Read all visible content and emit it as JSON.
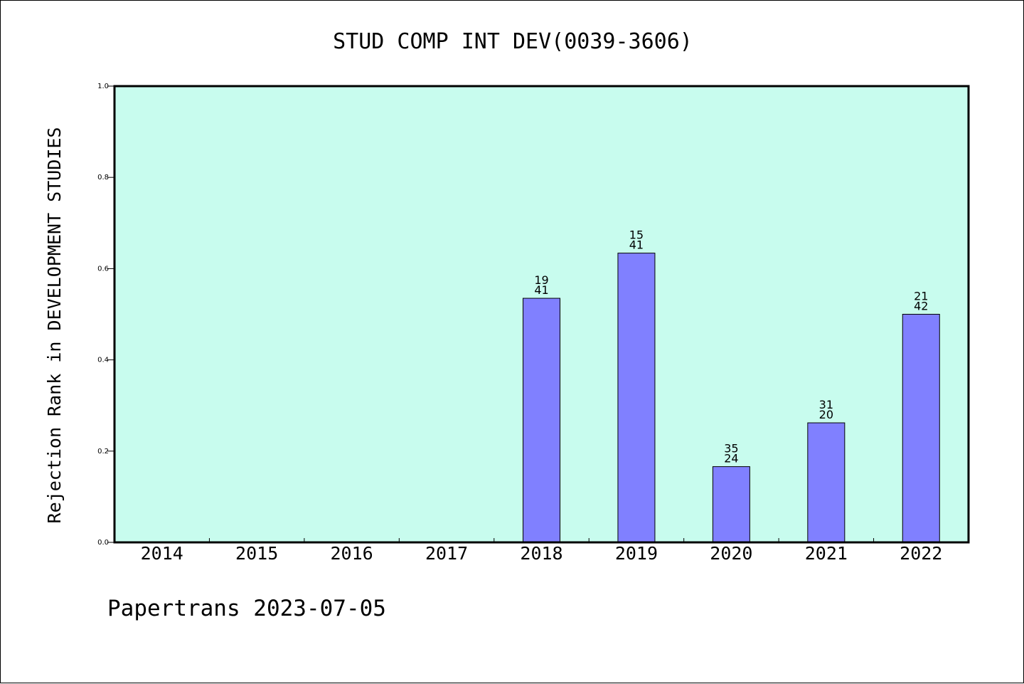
{
  "chart_data": {
    "type": "bar",
    "title": "STUD COMP INT DEV(0039-3606)",
    "ylabel": "Rejection Rank in DEVELOPMENT STUDIES",
    "xlabel": "",
    "categories": [
      "2014",
      "2015",
      "2016",
      "2017",
      "2018",
      "2019",
      "2020",
      "2021",
      "2022"
    ],
    "values": [
      null,
      null,
      null,
      null,
      0.535,
      0.634,
      0.166,
      0.262,
      0.5
    ],
    "bar_labels": [
      null,
      null,
      null,
      null,
      {
        "top": "19",
        "bottom": "41"
      },
      {
        "top": "15",
        "bottom": "41"
      },
      {
        "top": "35",
        "bottom": "24"
      },
      {
        "top": "31",
        "bottom": "20"
      },
      {
        "top": "21",
        "bottom": "42"
      }
    ],
    "ylim": [
      0,
      1.0
    ],
    "yticks": [
      "0.0",
      "0.2",
      "0.4",
      "0.6",
      "0.8",
      "1.0"
    ],
    "ytick_values": [
      0,
      0.2,
      0.4,
      0.6,
      0.8,
      1.0
    ],
    "grid": false,
    "colors": {
      "plot_background": "#c8fcee",
      "bar_fill": "#8080ff",
      "bar_stroke": "#000000",
      "axis": "#000000"
    }
  },
  "footer": {
    "text": "Papertrans 2023-07-05"
  }
}
